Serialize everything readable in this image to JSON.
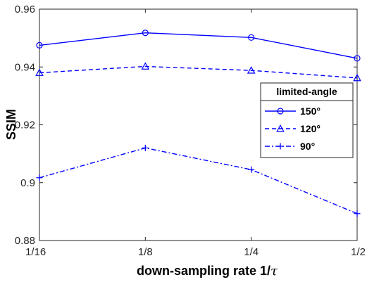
{
  "chart_data": {
    "type": "line",
    "categories": [
      "1/16",
      "1/8",
      "1/4",
      "1/2"
    ],
    "xlabel": "down-sampling rate 1/",
    "xlabel_symbol": "τ",
    "ylabel": "SSIM",
    "ylim": [
      0.88,
      0.96
    ],
    "yticks": [
      "0.88",
      "0.9",
      "0.92",
      "0.94",
      "0.96"
    ],
    "grid": false,
    "legend": {
      "title": "limited-angle",
      "placement": "right"
    },
    "series": [
      {
        "name": "150°",
        "values": [
          0.9475,
          0.9518,
          0.9502,
          0.943
        ],
        "marker": "circle",
        "dash": "solid",
        "color": "#0000ff"
      },
      {
        "name": "120°",
        "values": [
          0.938,
          0.9402,
          0.9388,
          0.9362
        ],
        "marker": "triangle",
        "dash": "dashed",
        "color": "#0000ff"
      },
      {
        "name": "90°",
        "values": [
          0.9017,
          0.912,
          0.9045,
          0.8893
        ],
        "marker": "plus",
        "dash": "dashdot",
        "color": "#0000ff"
      }
    ]
  }
}
